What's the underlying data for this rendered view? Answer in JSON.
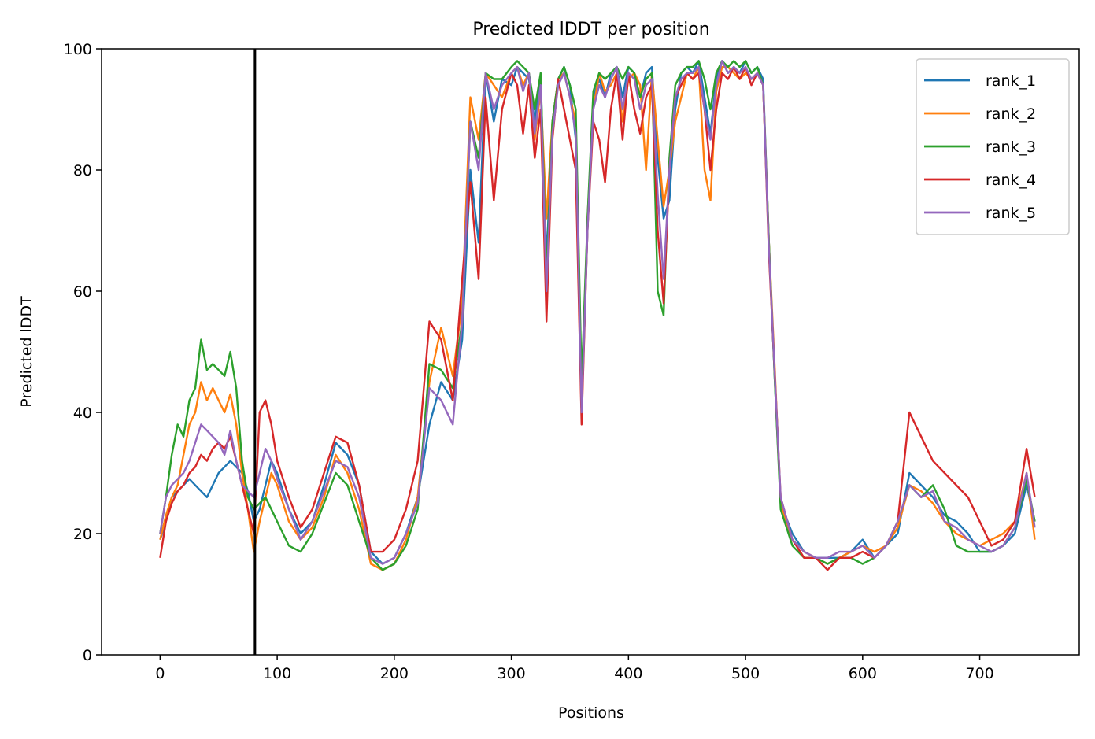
{
  "chart_data": {
    "type": "line",
    "title": "Predicted lDDT per position",
    "xlabel": "Positions",
    "ylabel": "Predicted lDDT",
    "xlim": [
      -50,
      785
    ],
    "ylim": [
      0,
      100
    ],
    "x_ticks": [
      0,
      100,
      200,
      300,
      400,
      500,
      600,
      700
    ],
    "y_ticks": [
      0,
      20,
      40,
      60,
      80,
      100
    ],
    "grid": false,
    "legend_position": "upper right",
    "vertical_line": {
      "x": 81,
      "color": "#000000"
    },
    "series": [
      {
        "name": "rank_1",
        "color": "#1f77b4",
        "x": [
          0,
          5,
          10,
          15,
          20,
          25,
          30,
          35,
          40,
          45,
          50,
          55,
          60,
          65,
          70,
          75,
          80,
          85,
          90,
          95,
          100,
          110,
          120,
          130,
          140,
          150,
          160,
          170,
          180,
          190,
          200,
          210,
          220,
          230,
          240,
          250,
          258,
          265,
          272,
          278,
          285,
          292,
          300,
          305,
          310,
          315,
          320,
          325,
          330,
          335,
          340,
          345,
          350,
          355,
          360,
          365,
          370,
          375,
          380,
          385,
          390,
          395,
          400,
          405,
          410,
          415,
          420,
          425,
          430,
          435,
          440,
          445,
          450,
          455,
          460,
          465,
          470,
          475,
          480,
          485,
          490,
          495,
          500,
          505,
          510,
          515,
          520,
          525,
          530,
          540,
          550,
          560,
          570,
          580,
          590,
          600,
          610,
          620,
          630,
          640,
          650,
          660,
          670,
          680,
          690,
          700,
          710,
          720,
          730,
          740,
          747
        ],
        "y": [
          19,
          22,
          26,
          27,
          28,
          29,
          28,
          27,
          26,
          28,
          30,
          31,
          32,
          31,
          30,
          27,
          22,
          24,
          28,
          32,
          30,
          24,
          20,
          22,
          28,
          35,
          33,
          28,
          17,
          15,
          16,
          20,
          26,
          38,
          45,
          42,
          52,
          80,
          68,
          96,
          88,
          95,
          94,
          97,
          96,
          95,
          88,
          95,
          65,
          88,
          95,
          97,
          94,
          85,
          40,
          70,
          92,
          95,
          92,
          96,
          97,
          92,
          97,
          96,
          92,
          96,
          97,
          82,
          72,
          75,
          90,
          96,
          97,
          96,
          98,
          92,
          86,
          95,
          98,
          96,
          97,
          96,
          98,
          96,
          97,
          95,
          68,
          45,
          25,
          20,
          17,
          16,
          16,
          16,
          17,
          19,
          16,
          18,
          20,
          30,
          28,
          26,
          23,
          22,
          20,
          17,
          17,
          18,
          20,
          28,
          22
        ]
      },
      {
        "name": "rank_2",
        "color": "#ff7f0e",
        "x": [
          0,
          5,
          10,
          15,
          20,
          25,
          30,
          35,
          40,
          45,
          50,
          55,
          60,
          65,
          70,
          75,
          80,
          85,
          90,
          95,
          100,
          110,
          120,
          130,
          140,
          150,
          160,
          170,
          180,
          190,
          200,
          210,
          220,
          230,
          240,
          250,
          258,
          265,
          272,
          278,
          285,
          292,
          300,
          305,
          310,
          315,
          320,
          325,
          330,
          335,
          340,
          345,
          350,
          355,
          360,
          365,
          370,
          375,
          380,
          385,
          390,
          395,
          400,
          405,
          410,
          415,
          420,
          425,
          430,
          435,
          440,
          445,
          450,
          455,
          460,
          465,
          470,
          475,
          480,
          485,
          490,
          495,
          500,
          505,
          510,
          515,
          520,
          525,
          530,
          540,
          550,
          560,
          570,
          580,
          590,
          600,
          610,
          620,
          630,
          640,
          650,
          660,
          670,
          680,
          690,
          700,
          710,
          720,
          730,
          740,
          747
        ],
        "y": [
          19,
          23,
          26,
          28,
          33,
          38,
          40,
          45,
          42,
          44,
          42,
          40,
          43,
          38,
          30,
          24,
          17,
          22,
          26,
          30,
          28,
          22,
          19,
          21,
          26,
          33,
          30,
          24,
          15,
          14,
          15,
          19,
          26,
          45,
          54,
          46,
          58,
          92,
          85,
          96,
          94,
          92,
          96,
          97,
          94,
          96,
          85,
          93,
          72,
          88,
          95,
          96,
          92,
          88,
          40,
          72,
          90,
          96,
          93,
          94,
          96,
          88,
          95,
          96,
          94,
          80,
          96,
          85,
          74,
          80,
          88,
          92,
          96,
          95,
          97,
          80,
          75,
          93,
          97,
          97,
          96,
          95,
          96,
          95,
          96,
          94,
          68,
          47,
          25,
          19,
          17,
          16,
          15,
          16,
          17,
          18,
          17,
          18,
          21,
          28,
          27,
          25,
          22,
          20,
          19,
          18,
          19,
          20,
          22,
          30,
          19
        ]
      },
      {
        "name": "rank_3",
        "color": "#2ca02c",
        "x": [
          0,
          5,
          10,
          15,
          20,
          25,
          30,
          35,
          40,
          45,
          50,
          55,
          60,
          65,
          70,
          75,
          80,
          85,
          90,
          95,
          100,
          110,
          120,
          130,
          140,
          150,
          160,
          170,
          180,
          190,
          200,
          210,
          220,
          230,
          240,
          250,
          258,
          265,
          272,
          278,
          285,
          292,
          300,
          305,
          310,
          315,
          320,
          325,
          330,
          335,
          340,
          345,
          350,
          355,
          360,
          365,
          370,
          375,
          380,
          385,
          390,
          395,
          400,
          405,
          410,
          415,
          420,
          425,
          430,
          435,
          440,
          445,
          450,
          455,
          460,
          465,
          470,
          475,
          480,
          485,
          490,
          495,
          500,
          505,
          510,
          515,
          520,
          525,
          530,
          540,
          550,
          560,
          570,
          580,
          590,
          600,
          610,
          620,
          630,
          640,
          650,
          660,
          670,
          680,
          690,
          700,
          710,
          720,
          730,
          740,
          747
        ],
        "y": [
          20,
          26,
          33,
          38,
          36,
          42,
          44,
          52,
          47,
          48,
          47,
          46,
          50,
          44,
          32,
          26,
          24,
          25,
          26,
          24,
          22,
          18,
          17,
          20,
          25,
          30,
          28,
          22,
          16,
          14,
          15,
          18,
          24,
          48,
          47,
          44,
          55,
          88,
          82,
          96,
          95,
          95,
          97,
          98,
          97,
          96,
          90,
          96,
          62,
          88,
          95,
          97,
          94,
          90,
          45,
          72,
          93,
          96,
          95,
          96,
          97,
          95,
          97,
          96,
          92,
          95,
          96,
          60,
          56,
          82,
          94,
          96,
          97,
          97,
          98,
          95,
          90,
          96,
          98,
          97,
          98,
          97,
          98,
          96,
          97,
          94,
          68,
          45,
          24,
          18,
          16,
          16,
          15,
          16,
          16,
          15,
          16,
          18,
          22,
          28,
          26,
          28,
          24,
          18,
          17,
          17,
          17,
          18,
          21,
          29,
          22
        ]
      },
      {
        "name": "rank_4",
        "color": "#d62728",
        "x": [
          0,
          5,
          10,
          15,
          20,
          25,
          30,
          35,
          40,
          45,
          50,
          55,
          60,
          65,
          70,
          75,
          80,
          85,
          90,
          95,
          100,
          110,
          120,
          130,
          140,
          150,
          160,
          170,
          180,
          190,
          200,
          210,
          220,
          230,
          240,
          250,
          258,
          265,
          272,
          278,
          285,
          292,
          300,
          305,
          310,
          315,
          320,
          325,
          330,
          335,
          340,
          345,
          350,
          355,
          360,
          365,
          370,
          375,
          380,
          385,
          390,
          395,
          400,
          405,
          410,
          415,
          420,
          425,
          430,
          435,
          440,
          445,
          450,
          455,
          460,
          465,
          470,
          475,
          480,
          485,
          490,
          495,
          500,
          505,
          510,
          515,
          520,
          525,
          530,
          540,
          550,
          560,
          570,
          580,
          590,
          600,
          610,
          620,
          630,
          640,
          650,
          660,
          670,
          680,
          690,
          700,
          710,
          720,
          730,
          740,
          747
        ],
        "y": [
          16,
          22,
          25,
          27,
          28,
          30,
          31,
          33,
          32,
          34,
          35,
          34,
          36,
          32,
          28,
          24,
          20,
          40,
          42,
          38,
          32,
          26,
          21,
          24,
          30,
          36,
          35,
          28,
          17,
          17,
          19,
          24,
          32,
          55,
          52,
          42,
          62,
          78,
          62,
          92,
          75,
          90,
          96,
          94,
          86,
          94,
          82,
          90,
          55,
          85,
          95,
          90,
          85,
          80,
          38,
          70,
          88,
          85,
          78,
          90,
          96,
          85,
          96,
          90,
          86,
          92,
          94,
          70,
          58,
          80,
          92,
          94,
          96,
          95,
          96,
          90,
          80,
          90,
          96,
          95,
          97,
          95,
          97,
          94,
          96,
          94,
          66,
          46,
          26,
          19,
          16,
          16,
          14,
          16,
          16,
          17,
          16,
          18,
          22,
          40,
          36,
          32,
          30,
          28,
          26,
          22,
          18,
          19,
          22,
          34,
          26
        ]
      },
      {
        "name": "rank_5",
        "color": "#9467bd",
        "x": [
          0,
          5,
          10,
          15,
          20,
          25,
          30,
          35,
          40,
          45,
          50,
          55,
          60,
          65,
          70,
          75,
          80,
          85,
          90,
          95,
          100,
          110,
          120,
          130,
          140,
          150,
          160,
          170,
          180,
          190,
          200,
          210,
          220,
          230,
          240,
          250,
          258,
          265,
          272,
          278,
          285,
          292,
          300,
          305,
          310,
          315,
          320,
          325,
          330,
          335,
          340,
          345,
          350,
          355,
          360,
          365,
          370,
          375,
          380,
          385,
          390,
          395,
          400,
          405,
          410,
          415,
          420,
          425,
          430,
          435,
          440,
          445,
          450,
          455,
          460,
          465,
          470,
          475,
          480,
          485,
          490,
          495,
          500,
          505,
          510,
          515,
          520,
          525,
          530,
          540,
          550,
          560,
          570,
          580,
          590,
          600,
          610,
          620,
          630,
          640,
          650,
          660,
          670,
          680,
          690,
          700,
          710,
          720,
          730,
          740,
          747
        ],
        "y": [
          20,
          26,
          28,
          29,
          30,
          32,
          35,
          38,
          37,
          36,
          35,
          33,
          37,
          32,
          28,
          27,
          26,
          30,
          34,
          32,
          29,
          24,
          19,
          22,
          27,
          32,
          31,
          26,
          16,
          15,
          16,
          20,
          25,
          44,
          42,
          38,
          55,
          88,
          80,
          96,
          90,
          94,
          96,
          97,
          93,
          96,
          86,
          94,
          60,
          86,
          94,
          96,
          92,
          86,
          40,
          70,
          90,
          94,
          92,
          95,
          97,
          90,
          96,
          95,
          90,
          94,
          95,
          76,
          62,
          80,
          92,
          95,
          96,
          96,
          97,
          90,
          85,
          94,
          98,
          96,
          97,
          96,
          97,
          95,
          96,
          94,
          67,
          46,
          26,
          19,
          17,
          16,
          16,
          17,
          17,
          18,
          16,
          18,
          22,
          28,
          26,
          27,
          22,
          21,
          19,
          18,
          17,
          18,
          21,
          30,
          21
        ]
      }
    ]
  }
}
